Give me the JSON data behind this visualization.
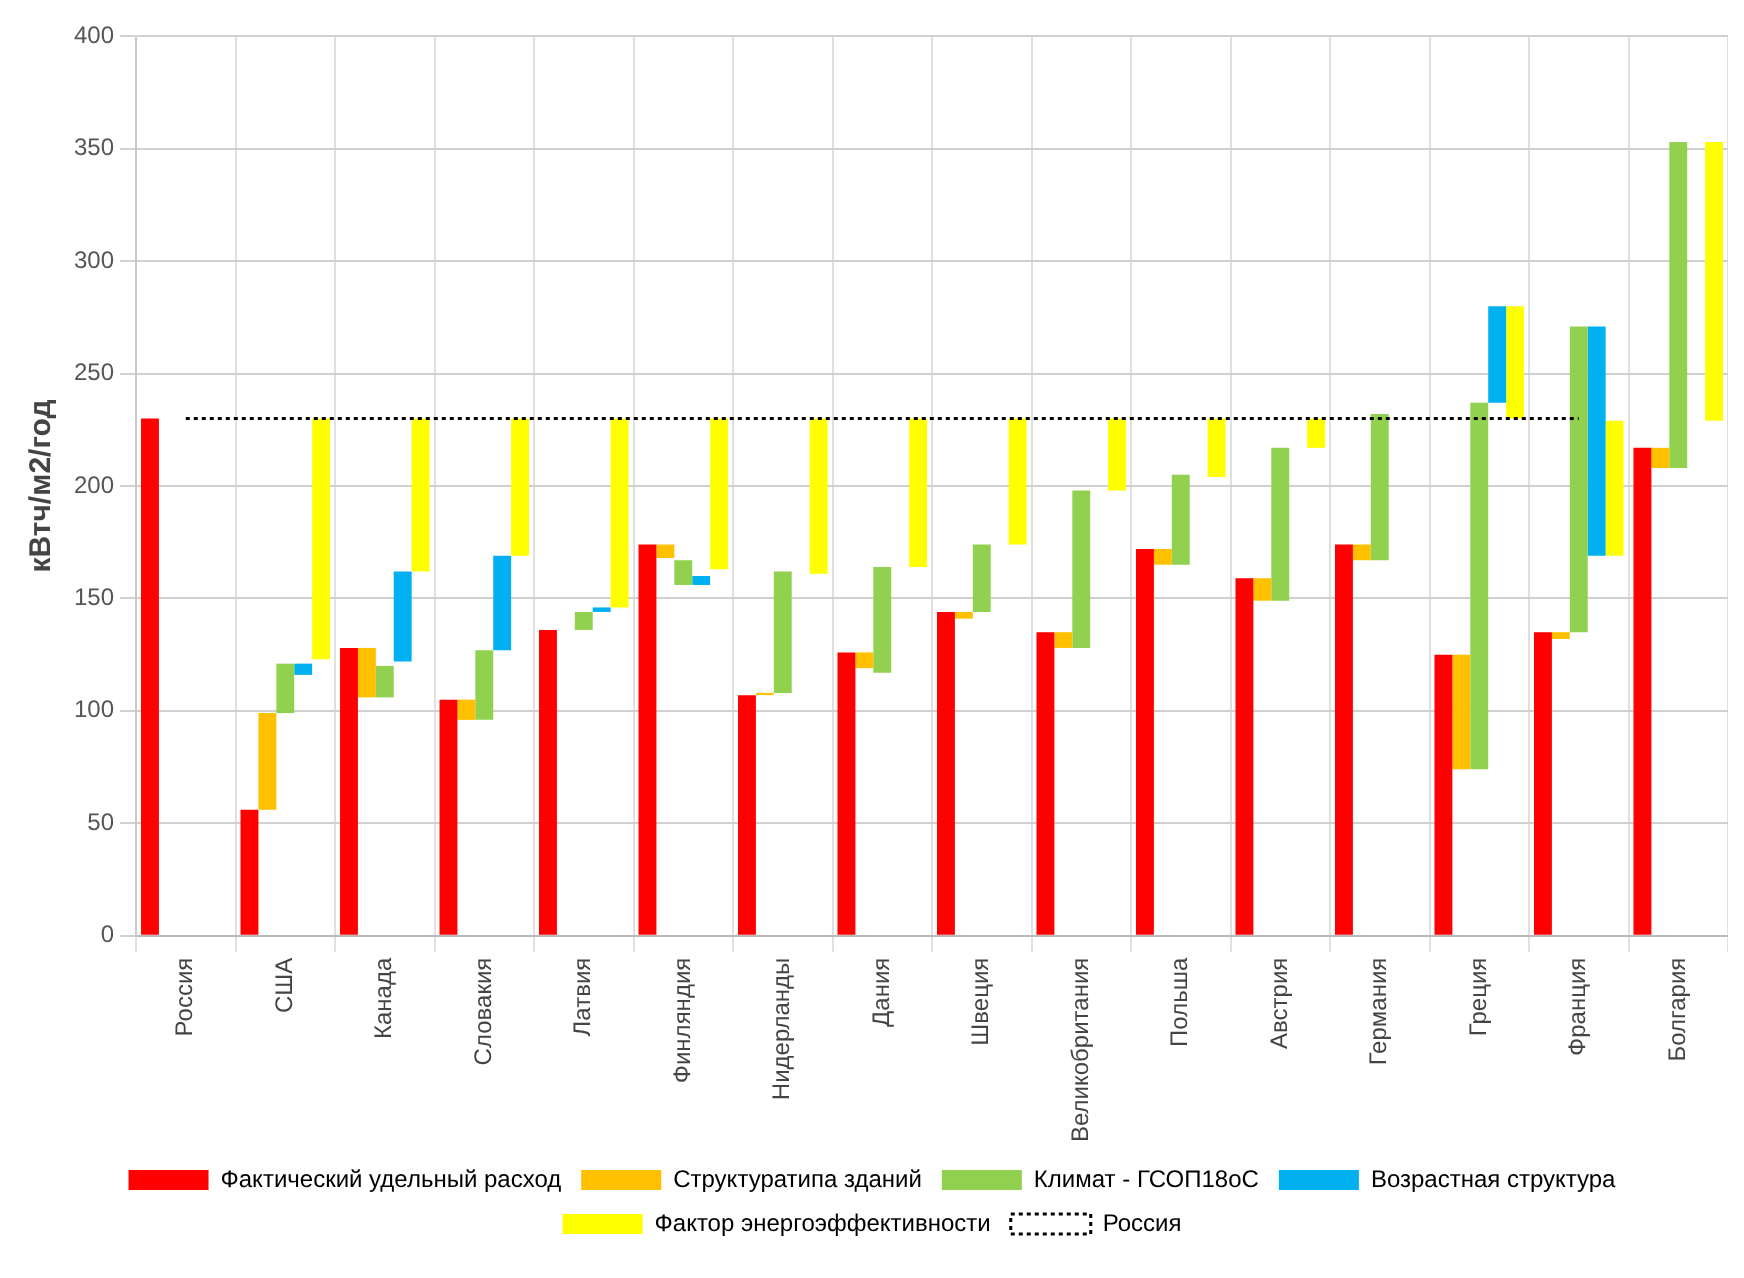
{
  "chart_data": {
    "type": "bar",
    "ylabel": "кВтч/м2/год",
    "categories": [
      "Россия",
      "США",
      "Канада",
      "Словакия",
      "Латвия",
      "Финляндия",
      "Нидерланды",
      "Дания",
      "Швеция",
      "Великобритания",
      "Польша",
      "Австрия",
      "Германия",
      "Греция",
      "Франция",
      "Болгария"
    ],
    "series": [
      {
        "name": "Фактический удельный расход",
        "color": "#ff0000",
        "base": [
          0,
          0,
          0,
          0,
          0,
          0,
          0,
          0,
          0,
          0,
          0,
          0,
          0,
          0,
          0,
          0
        ],
        "values": [
          230,
          56,
          128,
          105,
          136,
          174,
          107,
          126,
          144,
          135,
          172,
          159,
          174,
          125,
          135,
          217
        ]
      },
      {
        "name": "Структуратипа зданий",
        "color": "#ffc000",
        "base": [
          null,
          56,
          106,
          96,
          null,
          168,
          107,
          119,
          141,
          128,
          165,
          149,
          167,
          74,
          132,
          208
        ],
        "values": [
          null,
          43,
          22,
          9,
          null,
          6,
          1,
          7,
          3,
          7,
          7,
          10,
          7,
          51,
          3,
          9
        ]
      },
      {
        "name": "Климат - ГСОП18оС",
        "color": "#92d050",
        "base": [
          null,
          99,
          106,
          96,
          136,
          156,
          108,
          117,
          144,
          128,
          165,
          149,
          167,
          74,
          135,
          208
        ],
        "values": [
          null,
          22,
          14,
          31,
          8,
          11,
          54,
          47,
          30,
          70,
          40,
          68,
          65,
          163,
          136,
          145
        ]
      },
      {
        "name": "Возрастная структура",
        "color": "#00b0f0",
        "base": [
          null,
          116,
          122,
          127,
          144,
          156,
          null,
          null,
          null,
          null,
          null,
          null,
          null,
          237,
          169,
          null
        ],
        "values": [
          null,
          5,
          40,
          42,
          2,
          4,
          null,
          null,
          null,
          null,
          null,
          null,
          null,
          43,
          102,
          null
        ]
      },
      {
        "name": "Фактор энергоэффективности",
        "color": "#ffff00",
        "base": [
          null,
          123,
          162,
          169,
          146,
          163,
          161,
          164,
          174,
          198,
          204,
          217,
          null,
          230,
          169,
          229
        ],
        "values": [
          null,
          107,
          68,
          61,
          84,
          67,
          69,
          66,
          56,
          32,
          26,
          13,
          null,
          50,
          60,
          124
        ]
      },
      {
        "name": "Россия",
        "type": "line",
        "color": "#000000",
        "line_style": "dotted",
        "values": [
          230,
          230,
          230,
          230,
          230,
          230,
          230,
          230,
          230,
          230,
          230,
          230,
          230,
          230,
          230,
          null
        ]
      }
    ],
    "ylim": [
      0,
      400
    ],
    "yticks": [
      0,
      50,
      100,
      150,
      200,
      250,
      300,
      350,
      400
    ],
    "grid": true,
    "legend": "bottom"
  }
}
